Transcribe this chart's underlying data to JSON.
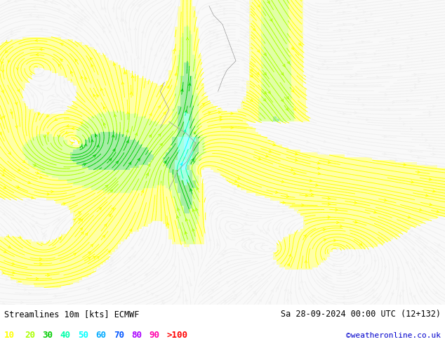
{
  "title_left": "Streamlines 10m [kts] ECMWF",
  "title_right": "Sa 28-09-2024 00:00 UTC (12+132)",
  "credit": "©weatheronline.co.uk",
  "legend_values": [
    "10",
    "20",
    "30",
    "40",
    "50",
    "60",
    "70",
    "80",
    "90",
    ">100"
  ],
  "legend_colors": [
    "#ffff00",
    "#aaff00",
    "#00cc00",
    "#00ffaa",
    "#00ffff",
    "#00aaff",
    "#0055ff",
    "#aa00ff",
    "#ff00aa",
    "#ff0000"
  ],
  "speed_colors": [
    "#f0f0f0",
    "#ffff00",
    "#aaff00",
    "#00cc00",
    "#00ffaa",
    "#00ffff",
    "#00aaff",
    "#0055ff",
    "#aa00ff",
    "#ff00aa",
    "#ff0000"
  ],
  "speed_bounds": [
    0,
    10,
    20,
    30,
    40,
    50,
    60,
    70,
    80,
    90,
    100,
    200
  ],
  "map_bg_sea": "#d8f8d0",
  "map_bg_land": "#d8f8d0",
  "calm_color": "#f8f8f8",
  "bottom_bar_color": "#ffffff",
  "credit_color": "#0000cc",
  "bottom_text_color": "#000000",
  "fig_width": 6.34,
  "fig_height": 4.9,
  "dpi": 100,
  "seed": 42
}
